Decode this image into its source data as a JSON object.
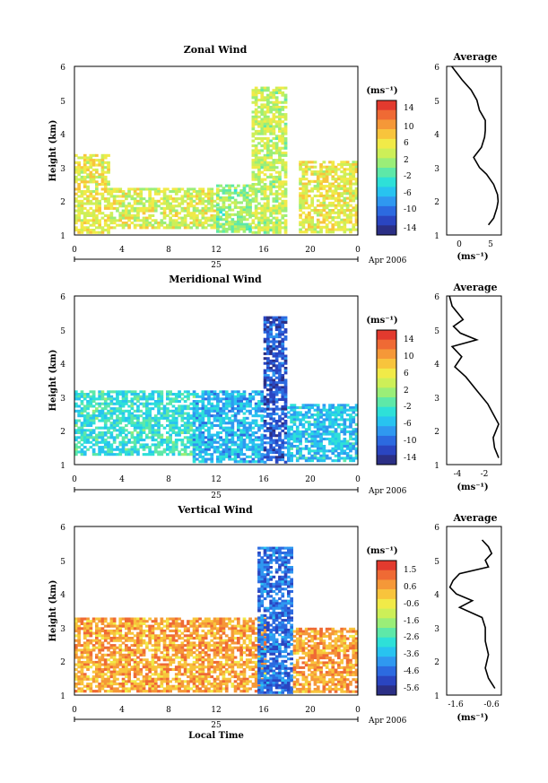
{
  "panels": [
    {
      "title": "Zonal Wind",
      "ylabel": "Height (km)",
      "y_ticks": [
        "1",
        "2",
        "3",
        "4",
        "5",
        "6"
      ],
      "x_ticks": [
        "0",
        "4",
        "8",
        "12",
        "16",
        "20",
        "0"
      ],
      "day_label": "25",
      "date_label": "Apr 2006",
      "xlabel": "",
      "colorbar": {
        "unit": "(ms⁻¹)",
        "ticks": [
          "14",
          "10",
          "6",
          "2",
          "-2",
          "-6",
          "-10",
          "-14"
        ]
      },
      "avg": {
        "title": "Average",
        "unit": "(ms⁻¹)",
        "x_ticks": [
          "0",
          "5"
        ],
        "y_ticks": [
          "1",
          "2",
          "3",
          "4",
          "5",
          "6"
        ]
      }
    },
    {
      "title": "Meridional Wind",
      "ylabel": "Height (km)",
      "y_ticks": [
        "1",
        "2",
        "3",
        "4",
        "5",
        "6"
      ],
      "x_ticks": [
        "0",
        "4",
        "8",
        "12",
        "16",
        "20",
        "0"
      ],
      "day_label": "25",
      "date_label": "Apr 2006",
      "xlabel": "",
      "colorbar": {
        "unit": "(ms⁻¹)",
        "ticks": [
          "14",
          "10",
          "6",
          "2",
          "-2",
          "-6",
          "-10",
          "-14"
        ]
      },
      "avg": {
        "title": "Average",
        "unit": "(ms⁻¹)",
        "x_ticks": [
          "-4",
          "-2"
        ],
        "y_ticks": [
          "1",
          "2",
          "3",
          "4",
          "5",
          "6"
        ]
      }
    },
    {
      "title": "Vertical Wind",
      "ylabel": "Height (km)",
      "y_ticks": [
        "1",
        "2",
        "3",
        "4",
        "5",
        "6"
      ],
      "x_ticks": [
        "0",
        "4",
        "8",
        "12",
        "16",
        "20",
        "0"
      ],
      "day_label": "25",
      "date_label": "Apr 2006",
      "xlabel": "Local Time",
      "colorbar": {
        "unit": "(ms⁻¹)",
        "ticks": [
          "1.5",
          "0.6",
          "-0.6",
          "-1.6",
          "-2.6",
          "-3.6",
          "-4.6",
          "-5.6"
        ]
      },
      "avg": {
        "title": "Average",
        "unit": "(ms⁻¹)",
        "x_ticks": [
          "-1.6",
          "-0.6"
        ],
        "y_ticks": [
          "1",
          "2",
          "3",
          "4",
          "5",
          "6"
        ]
      }
    }
  ],
  "colors": {
    "scale": [
      "#2b2f85",
      "#2a45c0",
      "#2c6ae0",
      "#2f98f0",
      "#28c3f0",
      "#2ee0d8",
      "#5ee8a8",
      "#9aee78",
      "#cdef58",
      "#f1ea48",
      "#f8c43c",
      "#f59838",
      "#ef6a34",
      "#e23a2e"
    ]
  },
  "chart_data": [
    {
      "type": "heatmap",
      "title": "Zonal Wind",
      "xlabel": "",
      "ylabel": "Height (km)",
      "x_range": [
        0,
        24
      ],
      "y_range": [
        1,
        6
      ],
      "color_range": [
        -14,
        16
      ],
      "colorbar_label": "(ms⁻¹)",
      "description_free": false,
      "regions": [
        {
          "x": [
            0,
            3
          ],
          "y": [
            1.1,
            3.4
          ],
          "value": 6
        },
        {
          "x": [
            3,
            12
          ],
          "y": [
            1.2,
            2.4
          ],
          "value": 5
        },
        {
          "x": [
            12,
            15
          ],
          "y": [
            1.1,
            2.5
          ],
          "value": 2
        },
        {
          "x": [
            15,
            18
          ],
          "y": [
            1.1,
            5.4
          ],
          "value": 4
        },
        {
          "x": [
            19,
            24
          ],
          "y": [
            1.1,
            3.2
          ],
          "value": 6
        }
      ],
      "average_profile": {
        "height": [
          1.3,
          1.5,
          1.8,
          2.0,
          2.2,
          2.5,
          2.8,
          3.0,
          3.3,
          3.6,
          3.9,
          4.1,
          4.4,
          4.7,
          5.0,
          5.3,
          5.6,
          5.9,
          6.0
        ],
        "value": [
          4.5,
          5.3,
          5.8,
          6.0,
          5.9,
          5.3,
          4.2,
          3.1,
          2.2,
          3.4,
          3.9,
          4.0,
          4.0,
          3.1,
          2.7,
          1.8,
          0.4,
          -0.8,
          -1.2
        ],
        "x_ticks": [
          0,
          5
        ],
        "x_range": [
          -2,
          6.5
        ]
      }
    },
    {
      "type": "heatmap",
      "title": "Meridional Wind",
      "xlabel": "",
      "ylabel": "Height (km)",
      "x_range": [
        0,
        24
      ],
      "y_range": [
        1,
        6
      ],
      "color_range": [
        -14,
        16
      ],
      "colorbar_label": "(ms⁻¹)",
      "regions": [
        {
          "x": [
            0,
            10
          ],
          "y": [
            1.3,
            3.2
          ],
          "value": -2
        },
        {
          "x": [
            10,
            16
          ],
          "y": [
            1.1,
            3.2
          ],
          "value": -5
        },
        {
          "x": [
            16,
            18
          ],
          "y": [
            1.1,
            5.4
          ],
          "value": -10
        },
        {
          "x": [
            18,
            24
          ],
          "y": [
            1.1,
            2.8
          ],
          "value": -4
        }
      ],
      "average_profile": {
        "height": [
          1.2,
          1.5,
          1.8,
          2.2,
          2.5,
          2.8,
          3.2,
          3.6,
          3.9,
          4.2,
          4.5,
          4.7,
          4.9,
          5.1,
          5.3,
          5.5,
          5.7,
          6.0
        ],
        "value": [
          -1.2,
          -1.5,
          -1.6,
          -1.2,
          -1.6,
          -2.0,
          -2.8,
          -3.6,
          -4.4,
          -3.9,
          -4.6,
          -2.8,
          -4.0,
          -4.5,
          -3.8,
          -4.2,
          -4.6,
          -4.8
        ],
        "x_ticks": [
          -4,
          -2
        ],
        "x_range": [
          -5,
          -1
        ]
      }
    },
    {
      "type": "heatmap",
      "title": "Vertical Wind",
      "xlabel": "Local Time",
      "ylabel": "Height (km)",
      "x_range": [
        0,
        24
      ],
      "y_range": [
        1,
        6
      ],
      "color_range": [
        -6,
        2
      ],
      "colorbar_label": "(ms⁻¹)",
      "regions": [
        {
          "x": [
            0,
            16
          ],
          "y": [
            1.1,
            3.3
          ],
          "value": 0.4
        },
        {
          "x": [
            15.5,
            18.5
          ],
          "y": [
            1.1,
            5.4
          ],
          "value": -4.5
        },
        {
          "x": [
            18.5,
            24
          ],
          "y": [
            1.1,
            3.0
          ],
          "value": 0.5
        }
      ],
      "average_profile": {
        "height": [
          1.2,
          1.5,
          1.8,
          2.2,
          2.6,
          3.0,
          3.3,
          3.6,
          3.8,
          4.0,
          4.2,
          4.4,
          4.6,
          4.8,
          5.0,
          5.2,
          5.4,
          5.6
        ],
        "value": [
          -0.6,
          -0.8,
          -0.9,
          -0.8,
          -0.9,
          -0.9,
          -1.0,
          -1.7,
          -1.3,
          -1.8,
          -2.0,
          -1.9,
          -1.7,
          -0.8,
          -0.9,
          -0.7,
          -0.8,
          -1.0
        ],
        "x_ticks": [
          -1.6,
          -0.6
        ],
        "x_range": [
          -2.1,
          -0.4
        ]
      }
    }
  ]
}
